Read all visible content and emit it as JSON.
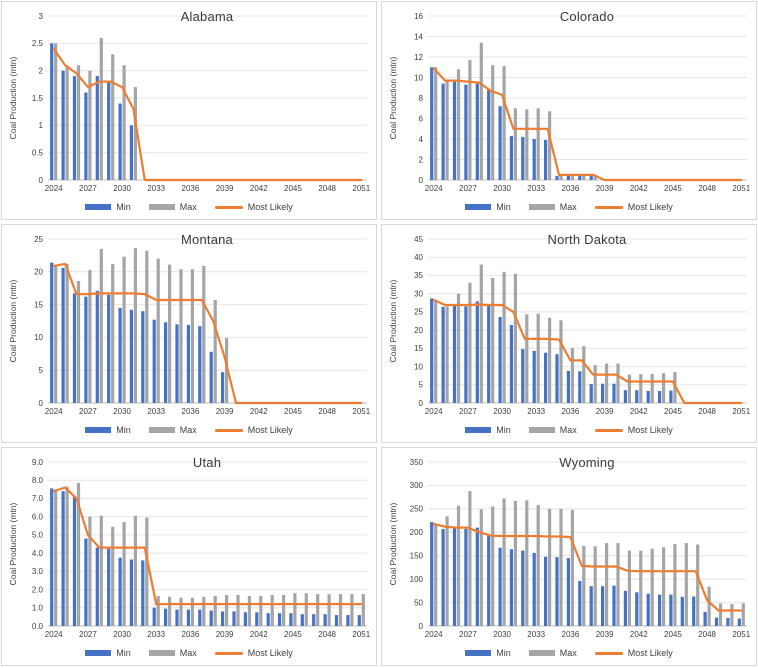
{
  "page": {
    "background": "#ffffff"
  },
  "legend": {
    "min_label": "Min",
    "max_label": "Max",
    "most_likely_label": "Most Likely"
  },
  "colors": {
    "min": "#4472C4",
    "max": "#A5A5A5",
    "most_likely": "#ED7D31",
    "grid": "#E4E4E4",
    "axis": "#BFBFBF",
    "text": "#404040"
  },
  "categories": [
    2024,
    2025,
    2026,
    2027,
    2028,
    2029,
    2030,
    2031,
    2032,
    2033,
    2034,
    2035,
    2036,
    2037,
    2038,
    2039,
    2040,
    2041,
    2042,
    2043,
    2044,
    2045,
    2046,
    2047,
    2048,
    2049,
    2050,
    2051
  ],
  "xtick_labels": [
    "2024",
    "2027",
    "2030",
    "2033",
    "2036",
    "2039",
    "2042",
    "2045",
    "2048",
    "2051"
  ],
  "chart_data": [
    {
      "type": "bar",
      "title": "Alabama",
      "ylabel": "Coal Production (mtn)",
      "ylim": [
        0,
        3
      ],
      "yticks": [
        0,
        0.5,
        1,
        1.5,
        2,
        2.5,
        3
      ],
      "ytick_labels": [
        "0",
        "0.5",
        "1",
        "1.5",
        "2",
        "2.5",
        "3"
      ],
      "legend_position": "bottom",
      "grid": true,
      "series": [
        {
          "name": "Min",
          "type": "bar",
          "values": [
            2.5,
            2.0,
            1.9,
            1.6,
            1.9,
            1.8,
            1.4,
            1.0,
            0,
            0,
            0,
            0,
            0,
            0,
            0,
            0,
            0,
            0,
            0,
            0,
            0,
            0,
            0,
            0,
            0,
            0,
            0,
            0
          ]
        },
        {
          "name": "Max",
          "type": "bar",
          "values": [
            2.5,
            2.1,
            2.1,
            2.0,
            2.6,
            2.3,
            2.1,
            1.7,
            0,
            0,
            0,
            0,
            0,
            0,
            0,
            0,
            0,
            0,
            0,
            0,
            0,
            0,
            0,
            0,
            0,
            0,
            0,
            0
          ]
        },
        {
          "name": "Most Likely",
          "type": "line",
          "values": [
            2.4,
            2.1,
            1.95,
            1.7,
            1.8,
            1.8,
            1.7,
            1.3,
            0,
            0,
            0,
            0,
            0,
            0,
            0,
            0,
            0,
            0,
            0,
            0,
            0,
            0,
            0,
            0,
            0,
            0,
            0,
            0
          ]
        }
      ]
    },
    {
      "type": "bar",
      "title": "Colorado",
      "ylabel": "Coal Production (mtn)",
      "ylim": [
        0,
        16
      ],
      "yticks": [
        0,
        2,
        4,
        6,
        8,
        10,
        12,
        14,
        16
      ],
      "ytick_labels": [
        "0",
        "2",
        "4",
        "6",
        "8",
        "10",
        "12",
        "14",
        "16"
      ],
      "legend_position": "bottom",
      "grid": true,
      "series": [
        {
          "name": "Min",
          "type": "bar",
          "values": [
            11.0,
            9.4,
            9.6,
            9.3,
            9.4,
            8.8,
            7.2,
            4.3,
            4.2,
            4.0,
            3.9,
            0.4,
            0.4,
            0.4,
            0.4,
            0,
            0,
            0,
            0,
            0,
            0,
            0,
            0,
            0,
            0,
            0,
            0,
            0
          ]
        },
        {
          "name": "Max",
          "type": "bar",
          "values": [
            11.0,
            9.7,
            10.8,
            11.7,
            13.4,
            11.2,
            11.1,
            7.0,
            6.9,
            7.0,
            6.7,
            0.5,
            0.5,
            0.5,
            0.5,
            0,
            0,
            0,
            0,
            0,
            0,
            0,
            0,
            0,
            0,
            0,
            0,
            0
          ]
        },
        {
          "name": "Most Likely",
          "type": "line",
          "values": [
            10.9,
            9.7,
            9.7,
            9.6,
            9.5,
            8.7,
            8.3,
            5.0,
            5.0,
            5.0,
            5.0,
            0.5,
            0.5,
            0.5,
            0.5,
            0,
            0,
            0,
            0,
            0,
            0,
            0,
            0,
            0,
            0,
            0,
            0,
            0
          ]
        }
      ]
    },
    {
      "type": "bar",
      "title": "Montana",
      "ylabel": "Coal Production (mtn)",
      "ylim": [
        0,
        25
      ],
      "yticks": [
        0,
        5,
        10,
        15,
        20,
        25
      ],
      "ytick_labels": [
        "0",
        "5",
        "10",
        "15",
        "20",
        "25"
      ],
      "legend_position": "bottom",
      "grid": true,
      "series": [
        {
          "name": "Min",
          "type": "bar",
          "values": [
            21.4,
            20.6,
            16.7,
            16.2,
            17.1,
            16.5,
            14.5,
            14.2,
            14.0,
            12.7,
            12.3,
            12.0,
            11.9,
            11.7,
            7.8,
            4.7,
            0,
            0,
            0,
            0,
            0,
            0,
            0,
            0,
            0,
            0,
            0,
            0
          ]
        },
        {
          "name": "Max",
          "type": "bar",
          "values": [
            21.0,
            21.2,
            18.6,
            20.3,
            23.5,
            21.2,
            22.3,
            23.6,
            23.2,
            22.0,
            21.1,
            20.4,
            20.4,
            20.9,
            15.7,
            9.9,
            0,
            0,
            0,
            0,
            0,
            0,
            0,
            0,
            0,
            0,
            0,
            0
          ]
        },
        {
          "name": "Most Likely",
          "type": "line",
          "values": [
            20.9,
            21.2,
            16.6,
            16.6,
            16.7,
            16.7,
            16.7,
            16.7,
            16.6,
            15.7,
            15.7,
            15.7,
            15.7,
            15.7,
            12.5,
            7.0,
            0,
            0,
            0,
            0,
            0,
            0,
            0,
            0,
            0,
            0,
            0,
            0
          ]
        }
      ]
    },
    {
      "type": "bar",
      "title": "North Dakota",
      "ylabel": "Coal Production (mtn)",
      "ylim": [
        0,
        45
      ],
      "yticks": [
        0,
        5,
        10,
        15,
        20,
        25,
        30,
        35,
        40,
        45
      ],
      "ytick_labels": [
        "0",
        "5",
        "10",
        "15",
        "20",
        "25",
        "30",
        "35",
        "40",
        "45"
      ],
      "legend_position": "bottom",
      "grid": true,
      "series": [
        {
          "name": "Min",
          "type": "bar",
          "values": [
            28.7,
            26.4,
            26.9,
            26.5,
            27.9,
            27.1,
            23.6,
            21.4,
            14.8,
            14.3,
            13.8,
            13.4,
            8.8,
            8.7,
            5.2,
            5.3,
            5.3,
            3.5,
            3.5,
            3.3,
            3.3,
            3.4,
            0,
            0,
            0,
            0,
            0,
            0
          ]
        },
        {
          "name": "Max",
          "type": "bar",
          "values": [
            28.2,
            26.5,
            30.0,
            33.0,
            38.0,
            34.3,
            36.0,
            35.5,
            24.3,
            24.5,
            23.4,
            22.7,
            15.1,
            15.6,
            10.4,
            10.8,
            10.8,
            7.8,
            7.9,
            8.0,
            8.2,
            8.5,
            0,
            0,
            0,
            0,
            0,
            0
          ]
        },
        {
          "name": "Most Likely",
          "type": "line",
          "values": [
            28.3,
            26.9,
            26.9,
            26.9,
            27.0,
            26.9,
            26.9,
            25.0,
            17.6,
            17.6,
            17.6,
            17.4,
            11.7,
            11.7,
            7.8,
            7.8,
            7.8,
            5.9,
            5.9,
            5.9,
            5.9,
            5.9,
            0,
            0,
            0,
            0,
            0,
            0
          ]
        }
      ]
    },
    {
      "type": "bar",
      "title": "Utah",
      "ylabel": "Coal Production (mtn)",
      "ylim": [
        0,
        9
      ],
      "yticks": [
        0,
        1,
        2,
        3,
        4,
        5,
        6,
        7,
        8,
        9
      ],
      "ytick_labels": [
        "0.0",
        "1.0",
        "2.0",
        "3.0",
        "4.0",
        "5.0",
        "6.0",
        "7.0",
        "8.0",
        "9.0"
      ],
      "legend_position": "bottom",
      "grid": true,
      "series": [
        {
          "name": "Min",
          "type": "bar",
          "values": [
            7.55,
            7.4,
            7.1,
            4.8,
            4.3,
            4.25,
            3.75,
            3.65,
            3.6,
            1.0,
            0.95,
            0.9,
            0.9,
            0.9,
            0.85,
            0.8,
            0.8,
            0.75,
            0.75,
            0.7,
            0.7,
            0.7,
            0.65,
            0.65,
            0.65,
            0.6,
            0.6,
            0.6
          ]
        },
        {
          "name": "Max",
          "type": "bar",
          "values": [
            7.4,
            7.65,
            7.85,
            6.0,
            6.05,
            5.45,
            5.7,
            6.05,
            5.95,
            1.65,
            1.6,
            1.55,
            1.55,
            1.6,
            1.65,
            1.7,
            1.7,
            1.65,
            1.65,
            1.7,
            1.7,
            1.8,
            1.8,
            1.75,
            1.75,
            1.75,
            1.75,
            1.75
          ]
        },
        {
          "name": "Most Likely",
          "type": "line",
          "values": [
            7.4,
            7.6,
            7.0,
            5.0,
            4.3,
            4.3,
            4.3,
            4.3,
            4.3,
            1.2,
            1.2,
            1.2,
            1.2,
            1.2,
            1.2,
            1.2,
            1.2,
            1.2,
            1.2,
            1.2,
            1.2,
            1.2,
            1.2,
            1.2,
            1.2,
            1.2,
            1.2,
            1.2
          ]
        }
      ]
    },
    {
      "type": "bar",
      "title": "Wyoming",
      "ylabel": "Coal Production (mtn)",
      "ylim": [
        0,
        350
      ],
      "yticks": [
        0,
        50,
        100,
        150,
        200,
        250,
        300,
        350
      ],
      "ytick_labels": [
        "0",
        "50",
        "100",
        "150",
        "200",
        "250",
        "300",
        "350"
      ],
      "legend_position": "bottom",
      "grid": true,
      "series": [
        {
          "name": "Min",
          "type": "bar",
          "values": [
            222,
            207,
            210,
            207,
            210,
            196,
            167,
            164,
            161,
            156,
            148,
            147,
            145,
            96,
            85,
            85,
            86,
            75,
            72,
            69,
            67,
            67,
            62,
            63,
            30,
            18,
            17,
            16
          ]
        },
        {
          "name": "Max",
          "type": "bar",
          "values": [
            218,
            234,
            257,
            288,
            249,
            255,
            272,
            267,
            268,
            258,
            250,
            250,
            248,
            171,
            170,
            177,
            177,
            161,
            161,
            165,
            168,
            175,
            177,
            174,
            84,
            48,
            47,
            48
          ]
        },
        {
          "name": "Most Likely",
          "type": "line",
          "values": [
            218,
            212,
            210,
            210,
            200,
            193,
            192,
            192,
            192,
            192,
            191,
            191,
            190,
            128,
            127,
            127,
            127,
            118,
            117,
            117,
            117,
            117,
            117,
            117,
            55,
            33,
            33,
            33
          ]
        }
      ]
    }
  ]
}
